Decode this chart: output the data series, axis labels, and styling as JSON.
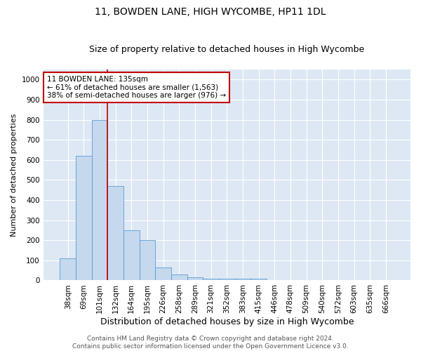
{
  "title": "11, BOWDEN LANE, HIGH WYCOMBE, HP11 1DL",
  "subtitle": "Size of property relative to detached houses in High Wycombe",
  "xlabel": "Distribution of detached houses by size in High Wycombe",
  "ylabel": "Number of detached properties",
  "bins": [
    "38sqm",
    "69sqm",
    "101sqm",
    "132sqm",
    "164sqm",
    "195sqm",
    "226sqm",
    "258sqm",
    "289sqm",
    "321sqm",
    "352sqm",
    "383sqm",
    "415sqm",
    "446sqm",
    "478sqm",
    "509sqm",
    "540sqm",
    "572sqm",
    "603sqm",
    "635sqm",
    "666sqm"
  ],
  "values": [
    110,
    620,
    800,
    470,
    250,
    200,
    63,
    28,
    15,
    10,
    8,
    10,
    10,
    0,
    0,
    0,
    0,
    0,
    0,
    0,
    0
  ],
  "bar_color": "#c5d8ed",
  "bar_edge_color": "#5b9bd5",
  "vline_bin_index": 3,
  "vline_color": "#c00000",
  "annotation_text": "11 BOWDEN LANE: 135sqm\n← 61% of detached houses are smaller (1,563)\n38% of semi-detached houses are larger (976) →",
  "annotation_box_color": "#ffffff",
  "annotation_box_edge": "#c00000",
  "ylim": [
    0,
    1050
  ],
  "yticks": [
    0,
    100,
    200,
    300,
    400,
    500,
    600,
    700,
    800,
    900,
    1000
  ],
  "background_color": "#dde8f4",
  "grid_color": "#ffffff",
  "footer": "Contains HM Land Registry data © Crown copyright and database right 2024.\nContains public sector information licensed under the Open Government Licence v3.0.",
  "title_fontsize": 10,
  "subtitle_fontsize": 9,
  "xlabel_fontsize": 9,
  "ylabel_fontsize": 8,
  "tick_fontsize": 7.5,
  "footer_fontsize": 6.5,
  "ann_fontsize": 7.5
}
